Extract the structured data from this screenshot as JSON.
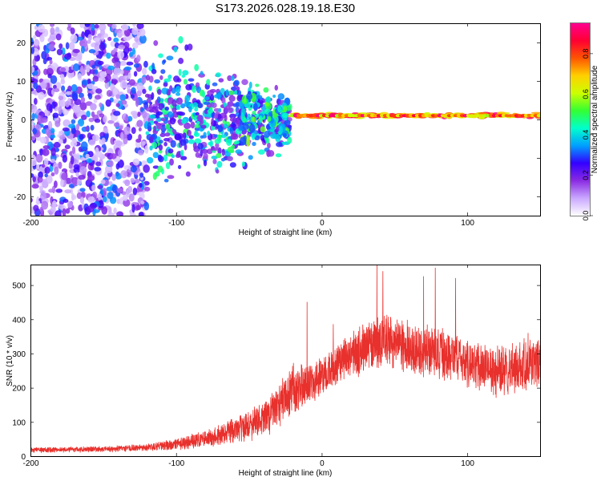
{
  "title": "S173.2026.028.19.18.E30",
  "chart_data": [
    {
      "type": "heatmap",
      "xlabel": "Height of straight line (km)",
      "ylabel": "Frequency (Hz)",
      "xlim": [
        -200,
        150
      ],
      "ylim": [
        -25,
        25
      ],
      "xticks": [
        -200,
        -100,
        0,
        100
      ],
      "yticks": [
        -20,
        -10,
        0,
        10,
        20
      ],
      "xtick_labels": [
        "-200",
        "-100",
        "0",
        "100"
      ],
      "ytick_labels": [
        "-20",
        "-10",
        "0",
        "10",
        "20"
      ],
      "colorbar": {
        "label": "Normalized spectral amplitude",
        "range": [
          0,
          0.95
        ],
        "ticks": [
          0,
          0.2,
          0.4,
          0.6,
          0.8
        ],
        "tick_labels": [
          "0.0",
          "0.2",
          "0.4",
          "0.6",
          "0.8"
        ],
        "colors": [
          "#ffffff",
          "#c9a8ff",
          "#8a2be2",
          "#3300ff",
          "#00a0ff",
          "#00ffcc",
          "#33ff33",
          "#ccff00",
          "#ffd000",
          "#ff5500",
          "#ff0033",
          "#ff0090"
        ]
      },
      "regions": [
        {
          "x_range": [
            -200,
            -120
          ],
          "freq_range": [
            -25,
            25
          ],
          "amplitude": "0.05-0.35",
          "pattern": "scattered noise"
        },
        {
          "x_range": [
            -120,
            -22
          ],
          "freq_range": [
            -8,
            8
          ],
          "amplitude": "0.15-0.5",
          "pattern": "converging noise"
        },
        {
          "x_range": [
            -55,
            -22
          ],
          "freq_range": [
            -6,
            6
          ],
          "amplitude": "0.3-0.6",
          "pattern": "bright clumps"
        },
        {
          "x_range": [
            -20,
            150
          ],
          "freq_range": [
            0,
            2
          ],
          "amplitude": "0.6-0.95",
          "pattern": "narrow band near 1 Hz"
        }
      ]
    },
    {
      "type": "line",
      "xlabel": "Height of straight line (km)",
      "ylabel": "SNR (10 * v/v)",
      "xlim": [
        -200,
        150
      ],
      "ylim": [
        0,
        560
      ],
      "xticks": [
        -200,
        -100,
        0,
        100
      ],
      "yticks": [
        0,
        100,
        200,
        300,
        400,
        500
      ],
      "xtick_labels": [
        "-200",
        "-100",
        "0",
        "100"
      ],
      "ytick_labels": [
        "0",
        "100",
        "200",
        "300",
        "400",
        "500"
      ],
      "series": [
        {
          "name": "SNR",
          "color": "#e8302c",
          "envelope_x": [
            -200,
            -150,
            -120,
            -100,
            -80,
            -60,
            -40,
            -30,
            -20,
            -10,
            0,
            10,
            20,
            30,
            40,
            50,
            60,
            70,
            80,
            90,
            100,
            110,
            120,
            130,
            140,
            150
          ],
          "envelope_mean": [
            18,
            20,
            25,
            35,
            50,
            75,
            110,
            150,
            190,
            210,
            230,
            265,
            290,
            320,
            335,
            330,
            320,
            305,
            300,
            295,
            270,
            255,
            250,
            260,
            270,
            275
          ],
          "envelope_spread": [
            12,
            14,
            18,
            28,
            40,
            60,
            80,
            110,
            120,
            100,
            90,
            100,
            110,
            130,
            140,
            130,
            130,
            130,
            140,
            110,
            110,
            110,
            120,
            120,
            130,
            120
          ],
          "peaks": [
            {
              "x": -10,
              "y": 450
            },
            {
              "x": 8,
              "y": 385
            },
            {
              "x": 38,
              "y": 560
            },
            {
              "x": 42,
              "y": 540
            },
            {
              "x": 70,
              "y": 525
            },
            {
              "x": 78,
              "y": 550
            },
            {
              "x": 92,
              "y": 520
            }
          ]
        }
      ]
    }
  ]
}
